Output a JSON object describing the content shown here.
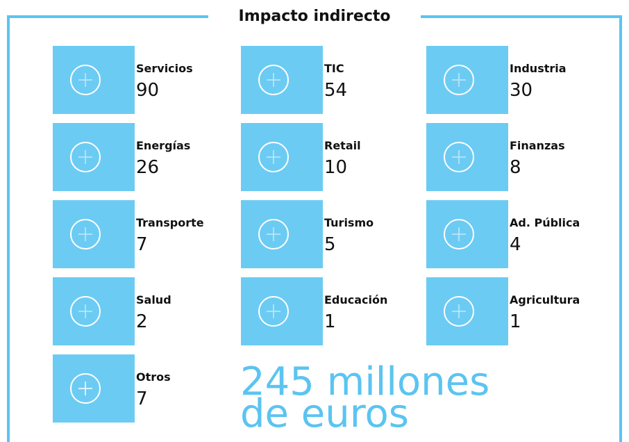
{
  "title": "Impacto indirecto",
  "items": [
    {
      "label": "Servicios",
      "value": 90
    },
    {
      "label": "TIC",
      "value": 54
    },
    {
      "label": "Industria",
      "value": 30
    },
    {
      "label": "Energías",
      "value": 26
    },
    {
      "label": "Retail",
      "value": 10
    },
    {
      "label": "Finanzas",
      "value": 8
    },
    {
      "label": "Transporte",
      "value": 7
    },
    {
      "label": "Turismo",
      "value": 5
    },
    {
      "label": "Ad. Pública",
      "value": 4
    },
    {
      "label": "Salud",
      "value": 2
    },
    {
      "label": "Educación",
      "value": 1
    },
    {
      "label": "Agricultura",
      "value": 1
    },
    {
      "label": "Otros",
      "value": 7
    }
  ],
  "total": {
    "line1": "245 millones",
    "line2": "de euros"
  }
}
